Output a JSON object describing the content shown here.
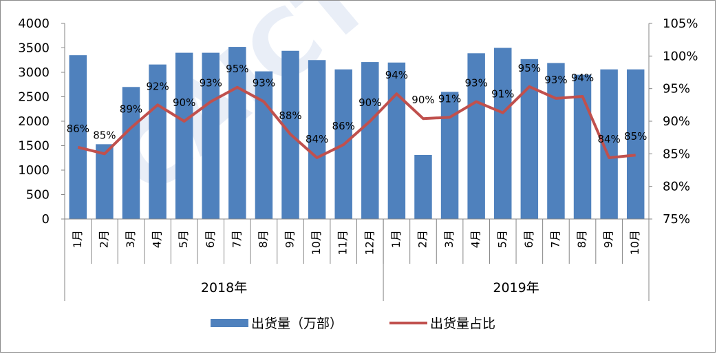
{
  "chart_data": {
    "type": "bar",
    "categories": [
      "1月",
      "2月",
      "3月",
      "4月",
      "5月",
      "6月",
      "7月",
      "8月",
      "9月",
      "10月",
      "11月",
      "12月",
      "1月",
      "2月",
      "3月",
      "4月",
      "5月",
      "6月",
      "7月",
      "8月",
      "9月",
      "10月"
    ],
    "groups": [
      {
        "label": "2018年",
        "count": 12
      },
      {
        "label": "2019年",
        "count": 10
      }
    ],
    "series": [
      {
        "name": "出货量（万部）",
        "type": "bar",
        "axis": "left",
        "color": "#4f81bd",
        "values": [
          3350,
          1530,
          2700,
          3160,
          3400,
          3400,
          3520,
          3020,
          3440,
          3250,
          3060,
          3210,
          3200,
          1310,
          2600,
          3390,
          3500,
          3270,
          3190,
          2950,
          3060,
          3060
        ]
      },
      {
        "name": "出货量占比",
        "type": "line",
        "axis": "right",
        "color": "#c0504d",
        "values": [
          86,
          85,
          89,
          92.5,
          90,
          93,
          95.2,
          93,
          88,
          84.4,
          86.4,
          90,
          94.2,
          90.4,
          90.6,
          93,
          91.3,
          95.3,
          93.5,
          93.8,
          84.4,
          84.8
        ],
        "labels": [
          "86%",
          "85%",
          "89%",
          "92%",
          "90%",
          "93%",
          "95%",
          "93%",
          "88%",
          "84%",
          "86%",
          "90%",
          "94%",
          "90%",
          "91%",
          "93%",
          "91%",
          "95%",
          "93%",
          "94%",
          "84%",
          "85%"
        ]
      }
    ],
    "y_left": {
      "min": 0,
      "max": 4000,
      "ticks": [
        "0",
        "500",
        "1000",
        "1500",
        "2000",
        "2500",
        "3000",
        "3500",
        "4000"
      ]
    },
    "y_right": {
      "min": 75,
      "max": 105,
      "ticks": [
        "75%",
        "80%",
        "85%",
        "90%",
        "95%",
        "100%",
        "105%"
      ]
    },
    "legend_position": "bottom",
    "grid": false
  },
  "legend": {
    "bar_label": "出货量（万部）",
    "line_label": "出货量占比"
  },
  "watermark": "CAICT"
}
